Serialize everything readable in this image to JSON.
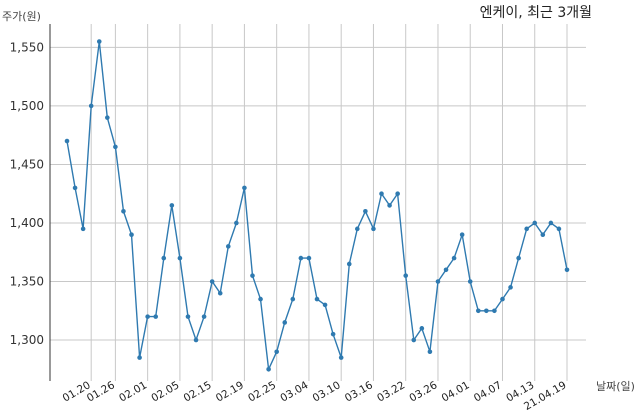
{
  "chart_data": {
    "type": "line",
    "title": "엔케이, 최근 3개월",
    "ylabel": "주가(원)",
    "xlabel": "날짜(일)",
    "ylim": [
      1265,
      1570
    ],
    "yticks": [
      1300,
      1350,
      1400,
      1450,
      1500,
      1550
    ],
    "ytick_labels": [
      "1,300",
      "1,350",
      "1,400",
      "1,450",
      "1,500",
      "1,550"
    ],
    "xtick_labels": [
      "01.20",
      "01.26",
      "02.01",
      "02.05",
      "02.15",
      "02.19",
      "02.25",
      "03.04",
      "03.10",
      "03.16",
      "03.22",
      "03.26",
      "04.01",
      "04.07",
      "04.13",
      "21.04.19"
    ],
    "xtick_index": [
      3,
      6,
      10,
      14,
      18,
      22,
      26,
      30,
      34,
      38,
      42,
      46,
      50,
      54,
      58,
      62
    ],
    "grid": true,
    "series": [
      {
        "color": "#2f7ab0",
        "values": [
          1470,
          1430,
          1395,
          1500,
          1555,
          1490,
          1465,
          1410,
          1390,
          1285,
          1320,
          1320,
          1370,
          1415,
          1370,
          1320,
          1300,
          1320,
          1350,
          1340,
          1380,
          1400,
          1430,
          1355,
          1335,
          1275,
          1290,
          1315,
          1335,
          1370,
          1370,
          1335,
          1330,
          1305,
          1285,
          1365,
          1395,
          1410,
          1395,
          1425,
          1415,
          1425,
          1355,
          1300,
          1310,
          1290,
          1350,
          1360,
          1370,
          1390,
          1350,
          1325,
          1325,
          1325,
          1335,
          1345,
          1370,
          1395,
          1400,
          1390,
          1400,
          1395,
          1360
        ]
      }
    ]
  }
}
